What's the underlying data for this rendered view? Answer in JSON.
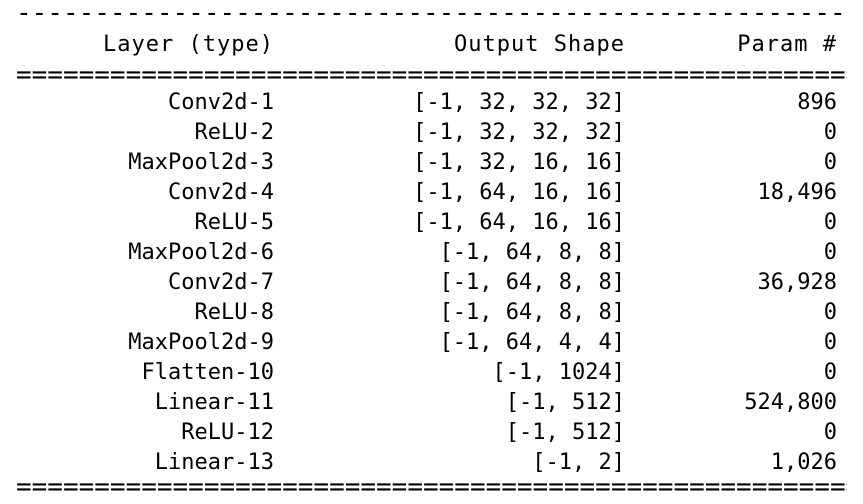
{
  "separators": {
    "top": "--------------------------------------------------------------------------------------------------------------------------------",
    "header_bottom": "================================================================================================================================",
    "bottom": "================================================================================================================================"
  },
  "header": {
    "layer": "Layer (type)",
    "output_shape": "Output Shape",
    "params": "Param #"
  },
  "rows": [
    {
      "layer": "Conv2d-1",
      "shape": "[-1, 32, 32, 32]",
      "params": "896"
    },
    {
      "layer": "ReLU-2",
      "shape": "[-1, 32, 32, 32]",
      "params": "0"
    },
    {
      "layer": "MaxPool2d-3",
      "shape": "[-1, 32, 16, 16]",
      "params": "0"
    },
    {
      "layer": "Conv2d-4",
      "shape": "[-1, 64, 16, 16]",
      "params": "18,496"
    },
    {
      "layer": "ReLU-5",
      "shape": "[-1, 64, 16, 16]",
      "params": "0"
    },
    {
      "layer": "MaxPool2d-6",
      "shape": "[-1, 64, 8, 8]",
      "params": "0"
    },
    {
      "layer": "Conv2d-7",
      "shape": "[-1, 64, 8, 8]",
      "params": "36,928"
    },
    {
      "layer": "ReLU-8",
      "shape": "[-1, 64, 8, 8]",
      "params": "0"
    },
    {
      "layer": "MaxPool2d-9",
      "shape": "[-1, 64, 4, 4]",
      "params": "0"
    },
    {
      "layer": "Flatten-10",
      "shape": "[-1, 1024]",
      "params": "0"
    },
    {
      "layer": "Linear-11",
      "shape": "[-1, 512]",
      "params": "524,800"
    },
    {
      "layer": "ReLU-12",
      "shape": "[-1, 512]",
      "params": "0"
    },
    {
      "layer": "Linear-13",
      "shape": "[-1, 2]",
      "params": "1,026"
    }
  ]
}
